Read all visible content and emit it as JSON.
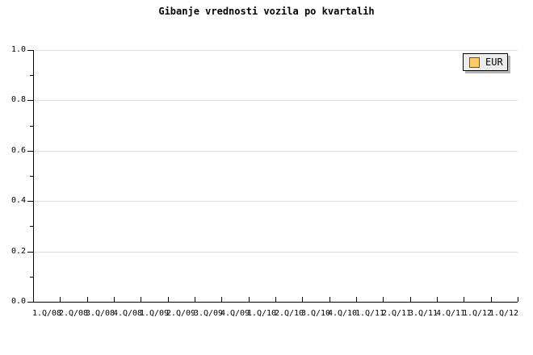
{
  "chart_data": {
    "type": "line",
    "title": "Gibanje vrednosti vozila po kvartalih",
    "categories": [
      "1.Q/08",
      "2.Q/08",
      "3.Q/08",
      "4.Q/08",
      "1.Q/09",
      "2.Q/09",
      "3.Q/09",
      "4.Q/09",
      "1.Q/10",
      "2.Q/10",
      "3.Q/10",
      "4.Q/10",
      "1.Q/11",
      "2.Q/11",
      "3.Q/11",
      "4.Q/11",
      "1.Q/12",
      "1.Q/12"
    ],
    "series": [
      {
        "name": "EUR",
        "color": "#ffcc66",
        "values": []
      }
    ],
    "xlabel": "",
    "ylabel": "",
    "ylim": [
      0.0,
      1.0
    ],
    "yticks": [
      {
        "value": 0.0,
        "label": "0.0"
      },
      {
        "value": 0.2,
        "label": "0.2"
      },
      {
        "value": 0.4,
        "label": "0.4"
      },
      {
        "value": 0.6,
        "label": "0.6"
      },
      {
        "value": 0.8,
        "label": "0.8"
      },
      {
        "value": 1.0,
        "label": "1.0"
      }
    ],
    "y_minor_tick_step": 0.1,
    "grid": {
      "horizontal": true,
      "vertical": false
    },
    "legend": {
      "position": "top-right",
      "entries": [
        {
          "label": "EUR",
          "swatch_color": "#ffcc66"
        }
      ]
    },
    "colors": {
      "background": "#ffffff",
      "axis": "#000000",
      "grid": "#dcdcdc",
      "text": "#000000",
      "legend_bg": "#ececec",
      "legend_border": "#000000",
      "legend_shadow": "#b4b4b4",
      "swatch_border": "#555555"
    }
  }
}
